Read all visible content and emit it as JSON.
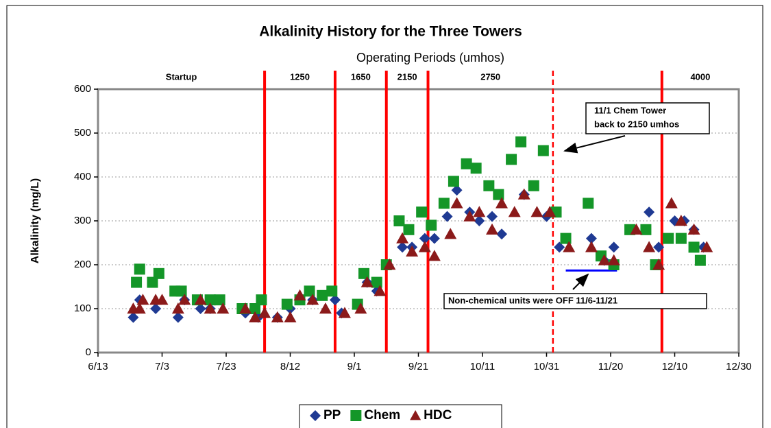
{
  "chart_data": {
    "type": "scatter",
    "title": "Alkalinity History for the Three Towers",
    "subtitle": "Operating Periods (umhos)",
    "y_label": "Alkalinity (mg/L)",
    "xlim": [
      0,
      200
    ],
    "xticks": [
      {
        "value": 0,
        "label": "6/13"
      },
      {
        "value": 20,
        "label": "7/3"
      },
      {
        "value": 40,
        "label": "7/23"
      },
      {
        "value": 60,
        "label": "8/12"
      },
      {
        "value": 80,
        "label": "9/1"
      },
      {
        "value": 100,
        "label": "9/21"
      },
      {
        "value": 120,
        "label": "10/11"
      },
      {
        "value": 140,
        "label": "10/31"
      },
      {
        "value": 160,
        "label": "11/20"
      },
      {
        "value": 180,
        "label": "12/10"
      },
      {
        "value": 200,
        "label": "12/30"
      }
    ],
    "ylim": [
      0,
      600
    ],
    "yticks": [
      0,
      100,
      200,
      300,
      400,
      500,
      600
    ],
    "grid": true,
    "periods": [
      {
        "label": "Startup",
        "start": 0,
        "end": 52
      },
      {
        "label": "1250",
        "start": 52,
        "end": 74
      },
      {
        "label": "1650",
        "start": 74,
        "end": 90
      },
      {
        "label": "2150",
        "start": 90,
        "end": 103
      },
      {
        "label": "2750",
        "start": 103,
        "end": 142
      },
      {
        "label": "4000",
        "start": 176,
        "end": 200
      }
    ],
    "period_lines": [
      {
        "x": 52,
        "dashed": false,
        "color": "#ff0000"
      },
      {
        "x": 74,
        "dashed": false,
        "color": "#ff0000"
      },
      {
        "x": 90,
        "dashed": false,
        "color": "#ff0000"
      },
      {
        "x": 103,
        "dashed": false,
        "color": "#ff0000"
      },
      {
        "x": 142,
        "dashed": true,
        "color": "#ff0000"
      },
      {
        "x": 176,
        "dashed": false,
        "color": "#ff0000"
      }
    ],
    "annotations": [
      {
        "lines": [
          "11/1 Chem Tower",
          "back to 2150 umhos"
        ]
      },
      {
        "lines": [
          "Non-chemical units were OFF 11/6-11/21"
        ],
        "x": [
          146,
          162
        ],
        "y": 187,
        "color": "#0000ff"
      }
    ],
    "legend": "bottom",
    "series": [
      {
        "name": "PP",
        "color": "#1f3a93",
        "marker": "diamond",
        "x": [
          11,
          13,
          18,
          25,
          27,
          32,
          35,
          46,
          50,
          56,
          60,
          67,
          74,
          76,
          84,
          87,
          95,
          98,
          102,
          105,
          109,
          112,
          116,
          119,
          123,
          126,
          133,
          140,
          144,
          154,
          158,
          161,
          172,
          175,
          180,
          183,
          186,
          189
        ],
        "values": [
          80,
          120,
          100,
          80,
          120,
          100,
          100,
          90,
          80,
          80,
          100,
          120,
          120,
          90,
          160,
          140,
          240,
          240,
          260,
          260,
          310,
          370,
          320,
          300,
          310,
          270,
          360,
          310,
          240,
          260,
          210,
          240,
          320,
          240,
          300,
          300,
          280,
          240
        ]
      },
      {
        "name": "Chem",
        "color": "#149628",
        "marker": "square",
        "x": [
          12,
          13,
          17,
          19,
          24,
          26,
          31,
          35,
          38,
          45,
          49,
          51,
          59,
          63,
          66,
          70,
          73,
          81,
          83,
          87,
          90,
          94,
          97,
          101,
          104,
          108,
          111,
          115,
          118,
          122,
          125,
          129,
          132,
          136,
          139,
          143,
          146,
          153,
          157,
          161,
          166,
          171,
          174,
          178,
          182,
          186,
          188
        ],
        "values": [
          160,
          190,
          160,
          180,
          140,
          140,
          120,
          120,
          120,
          100,
          100,
          120,
          110,
          120,
          140,
          130,
          140,
          110,
          180,
          160,
          200,
          300,
          280,
          320,
          290,
          340,
          390,
          430,
          420,
          380,
          360,
          440,
          480,
          380,
          460,
          320,
          260,
          340,
          220,
          200,
          280,
          280,
          200,
          260,
          260,
          240,
          210
        ]
      },
      {
        "name": "HDC",
        "color": "#8b1a1a",
        "marker": "triangle",
        "x": [
          11,
          13,
          14,
          18,
          20,
          25,
          27,
          32,
          35,
          39,
          46,
          49,
          52,
          56,
          60,
          63,
          67,
          71,
          77,
          82,
          84,
          88,
          91,
          95,
          98,
          102,
          105,
          110,
          112,
          116,
          119,
          123,
          126,
          130,
          133,
          137,
          141,
          147,
          154,
          158,
          161,
          168,
          172,
          175,
          179,
          182,
          186,
          190
        ],
        "values": [
          100,
          100,
          120,
          120,
          120,
          100,
          120,
          120,
          100,
          100,
          100,
          80,
          90,
          80,
          80,
          130,
          120,
          100,
          90,
          100,
          160,
          140,
          200,
          260,
          230,
          240,
          220,
          270,
          340,
          310,
          320,
          280,
          340,
          320,
          360,
          320,
          320,
          240,
          240,
          210,
          210,
          280,
          240,
          200,
          340,
          300,
          280,
          240
        ]
      }
    ]
  }
}
